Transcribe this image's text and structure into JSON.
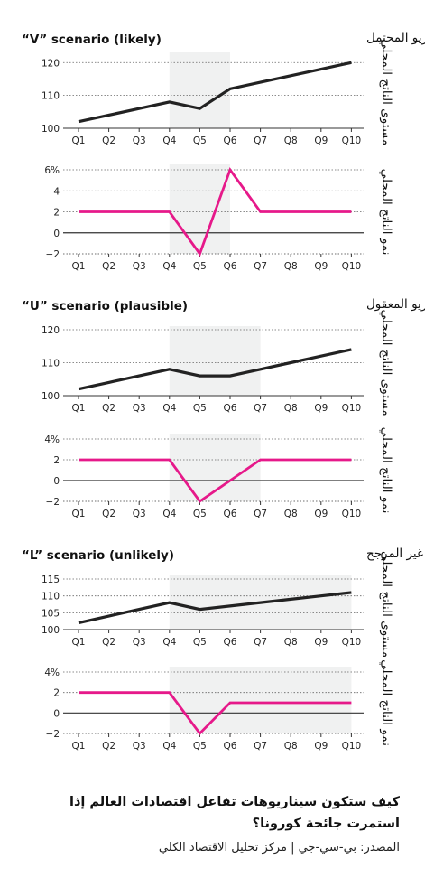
{
  "colors": {
    "level_line": "#222222",
    "growth_line": "#e6198a",
    "shade": "#f0f1f1",
    "grid": "#666666",
    "axis": "#333333"
  },
  "ylabel_level": "مستوى الناتج المحلي",
  "ylabel_growth": "نمو الناتج المحلي",
  "footer": {
    "title": "كيف ستكون سيناريوهات تفاعل اقتصادات العالم إذا استمرت جائحة كورونا؟",
    "source": "المصدر: بي-سي-جي | مركز تحليل الاقتصاد الكلي"
  },
  "chart_data": [
    {
      "type": "line",
      "scenario_title_en": "“V” scenario (likely)",
      "scenario_title_ar": "السيناريو المحتمل",
      "ylabel": "مستوى الناتج المحلي",
      "categories": [
        "Q1",
        "Q2",
        "Q3",
        "Q4",
        "Q5",
        "Q6",
        "Q7",
        "Q8",
        "Q9",
        "Q10"
      ],
      "values": [
        102,
        104,
        106,
        108,
        106,
        112,
        114,
        116,
        118,
        120
      ],
      "ylim": [
        100,
        122
      ],
      "yticks": [
        100,
        110,
        120
      ],
      "ytick_labels": [
        "100",
        "110",
        "120"
      ],
      "shade_range": [
        "Q4",
        "Q6"
      ]
    },
    {
      "type": "line",
      "ylabel": "نمو الناتج المحلي",
      "categories": [
        "Q1",
        "Q2",
        "Q3",
        "Q4",
        "Q5",
        "Q6",
        "Q7",
        "Q8",
        "Q9",
        "Q10"
      ],
      "values": [
        2,
        2,
        2,
        2,
        -2,
        6,
        2,
        2,
        2,
        2
      ],
      "ylim": [
        -2,
        6
      ],
      "yticks": [
        -2,
        0,
        2,
        4,
        6
      ],
      "ytick_labels": [
        "−2",
        "0",
        "2",
        "4",
        "6%"
      ],
      "shade_range": [
        "Q4",
        "Q6"
      ]
    },
    {
      "type": "line",
      "scenario_title_en": "“U” scenario (plausible)",
      "scenario_title_ar": "السيناريو المعقول",
      "ylabel": "مستوى الناتج المحلي",
      "categories": [
        "Q1",
        "Q2",
        "Q3",
        "Q4",
        "Q5",
        "Q6",
        "Q7",
        "Q8",
        "Q9",
        "Q10"
      ],
      "values": [
        102,
        104,
        106,
        108,
        106,
        106,
        108,
        110,
        112,
        114
      ],
      "ylim": [
        100,
        120
      ],
      "yticks": [
        100,
        110,
        120
      ],
      "ytick_labels": [
        "100",
        "110",
        "120"
      ],
      "shade_range": [
        "Q4",
        "Q7"
      ]
    },
    {
      "type": "line",
      "ylabel": "نمو الناتج المحلي",
      "categories": [
        "Q1",
        "Q2",
        "Q3",
        "Q4",
        "Q5",
        "Q6",
        "Q7",
        "Q8",
        "Q9",
        "Q10"
      ],
      "values": [
        2,
        2,
        2,
        2,
        -2,
        0,
        2,
        2,
        2,
        2
      ],
      "ylim": [
        -2,
        4
      ],
      "yticks": [
        -2,
        0,
        2,
        4
      ],
      "ytick_labels": [
        "−2",
        "0",
        "2",
        "4%"
      ],
      "shade_range": [
        "Q4",
        "Q7"
      ]
    },
    {
      "type": "line",
      "scenario_title_en": "“L” scenario (unlikely)",
      "scenario_title_ar": "السيناريو غير المرجح",
      "ylabel": "مستوى الناتج المحلي",
      "categories": [
        "Q1",
        "Q2",
        "Q3",
        "Q4",
        "Q5",
        "Q6",
        "Q7",
        "Q8",
        "Q9",
        "Q10"
      ],
      "values": [
        102,
        104,
        106,
        108,
        106,
        107,
        108,
        109,
        110,
        111
      ],
      "ylim": [
        100,
        115
      ],
      "yticks": [
        100,
        105,
        110,
        115
      ],
      "ytick_labels": [
        "100",
        "105",
        "110",
        "115"
      ],
      "shade_range": [
        "Q4",
        "Q10"
      ]
    },
    {
      "type": "line",
      "ylabel": "نمو الناتج المحلي",
      "categories": [
        "Q1",
        "Q2",
        "Q3",
        "Q4",
        "Q5",
        "Q6",
        "Q7",
        "Q8",
        "Q9",
        "Q10"
      ],
      "values": [
        2,
        2,
        2,
        2,
        -2,
        1,
        1,
        1,
        1,
        1
      ],
      "ylim": [
        -2,
        4
      ],
      "yticks": [
        -2,
        0,
        2,
        4
      ],
      "ytick_labels": [
        "−2",
        "0",
        "2",
        "4%"
      ],
      "shade_range": [
        "Q4",
        "Q10"
      ]
    }
  ]
}
